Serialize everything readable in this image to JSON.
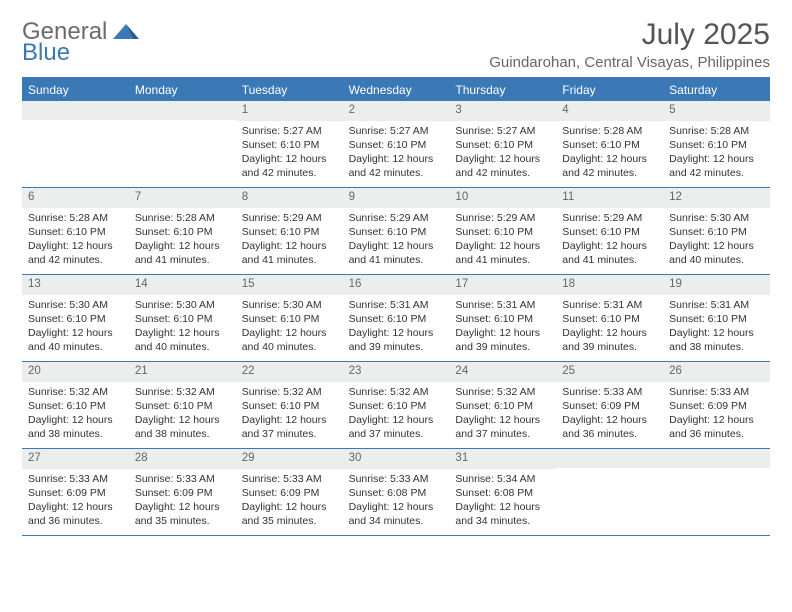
{
  "colors": {
    "accent": "#3a78b6",
    "header_bg": "#3a78b6",
    "header_text": "#ffffff",
    "daynum_bg": "#eceded",
    "daynum_text": "#666666",
    "body_text": "#333333",
    "logo_gray": "#6b6b6b",
    "logo_blue": "#3a78b6",
    "page_bg": "#ffffff",
    "row_divider": "#3a78b6"
  },
  "logo": {
    "part1": "General",
    "part2": "Blue"
  },
  "header": {
    "month_title": "July 2025",
    "subtitle": "Guindarohan, Central Visayas, Philippines"
  },
  "day_names": [
    "Sunday",
    "Monday",
    "Tuesday",
    "Wednesday",
    "Thursday",
    "Friday",
    "Saturday"
  ],
  "weeks": [
    [
      null,
      null,
      {
        "n": "1",
        "sr": "5:27 AM",
        "ss": "6:10 PM",
        "dl": "12 hours and 42 minutes."
      },
      {
        "n": "2",
        "sr": "5:27 AM",
        "ss": "6:10 PM",
        "dl": "12 hours and 42 minutes."
      },
      {
        "n": "3",
        "sr": "5:27 AM",
        "ss": "6:10 PM",
        "dl": "12 hours and 42 minutes."
      },
      {
        "n": "4",
        "sr": "5:28 AM",
        "ss": "6:10 PM",
        "dl": "12 hours and 42 minutes."
      },
      {
        "n": "5",
        "sr": "5:28 AM",
        "ss": "6:10 PM",
        "dl": "12 hours and 42 minutes."
      }
    ],
    [
      {
        "n": "6",
        "sr": "5:28 AM",
        "ss": "6:10 PM",
        "dl": "12 hours and 42 minutes."
      },
      {
        "n": "7",
        "sr": "5:28 AM",
        "ss": "6:10 PM",
        "dl": "12 hours and 41 minutes."
      },
      {
        "n": "8",
        "sr": "5:29 AM",
        "ss": "6:10 PM",
        "dl": "12 hours and 41 minutes."
      },
      {
        "n": "9",
        "sr": "5:29 AM",
        "ss": "6:10 PM",
        "dl": "12 hours and 41 minutes."
      },
      {
        "n": "10",
        "sr": "5:29 AM",
        "ss": "6:10 PM",
        "dl": "12 hours and 41 minutes."
      },
      {
        "n": "11",
        "sr": "5:29 AM",
        "ss": "6:10 PM",
        "dl": "12 hours and 41 minutes."
      },
      {
        "n": "12",
        "sr": "5:30 AM",
        "ss": "6:10 PM",
        "dl": "12 hours and 40 minutes."
      }
    ],
    [
      {
        "n": "13",
        "sr": "5:30 AM",
        "ss": "6:10 PM",
        "dl": "12 hours and 40 minutes."
      },
      {
        "n": "14",
        "sr": "5:30 AM",
        "ss": "6:10 PM",
        "dl": "12 hours and 40 minutes."
      },
      {
        "n": "15",
        "sr": "5:30 AM",
        "ss": "6:10 PM",
        "dl": "12 hours and 40 minutes."
      },
      {
        "n": "16",
        "sr": "5:31 AM",
        "ss": "6:10 PM",
        "dl": "12 hours and 39 minutes."
      },
      {
        "n": "17",
        "sr": "5:31 AM",
        "ss": "6:10 PM",
        "dl": "12 hours and 39 minutes."
      },
      {
        "n": "18",
        "sr": "5:31 AM",
        "ss": "6:10 PM",
        "dl": "12 hours and 39 minutes."
      },
      {
        "n": "19",
        "sr": "5:31 AM",
        "ss": "6:10 PM",
        "dl": "12 hours and 38 minutes."
      }
    ],
    [
      {
        "n": "20",
        "sr": "5:32 AM",
        "ss": "6:10 PM",
        "dl": "12 hours and 38 minutes."
      },
      {
        "n": "21",
        "sr": "5:32 AM",
        "ss": "6:10 PM",
        "dl": "12 hours and 38 minutes."
      },
      {
        "n": "22",
        "sr": "5:32 AM",
        "ss": "6:10 PM",
        "dl": "12 hours and 37 minutes."
      },
      {
        "n": "23",
        "sr": "5:32 AM",
        "ss": "6:10 PM",
        "dl": "12 hours and 37 minutes."
      },
      {
        "n": "24",
        "sr": "5:32 AM",
        "ss": "6:10 PM",
        "dl": "12 hours and 37 minutes."
      },
      {
        "n": "25",
        "sr": "5:33 AM",
        "ss": "6:09 PM",
        "dl": "12 hours and 36 minutes."
      },
      {
        "n": "26",
        "sr": "5:33 AM",
        "ss": "6:09 PM",
        "dl": "12 hours and 36 minutes."
      }
    ],
    [
      {
        "n": "27",
        "sr": "5:33 AM",
        "ss": "6:09 PM",
        "dl": "12 hours and 36 minutes."
      },
      {
        "n": "28",
        "sr": "5:33 AM",
        "ss": "6:09 PM",
        "dl": "12 hours and 35 minutes."
      },
      {
        "n": "29",
        "sr": "5:33 AM",
        "ss": "6:09 PM",
        "dl": "12 hours and 35 minutes."
      },
      {
        "n": "30",
        "sr": "5:33 AM",
        "ss": "6:08 PM",
        "dl": "12 hours and 34 minutes."
      },
      {
        "n": "31",
        "sr": "5:34 AM",
        "ss": "6:08 PM",
        "dl": "12 hours and 34 minutes."
      },
      null,
      null
    ]
  ],
  "labels": {
    "sunrise": "Sunrise:",
    "sunset": "Sunset:",
    "daylight": "Daylight:"
  }
}
